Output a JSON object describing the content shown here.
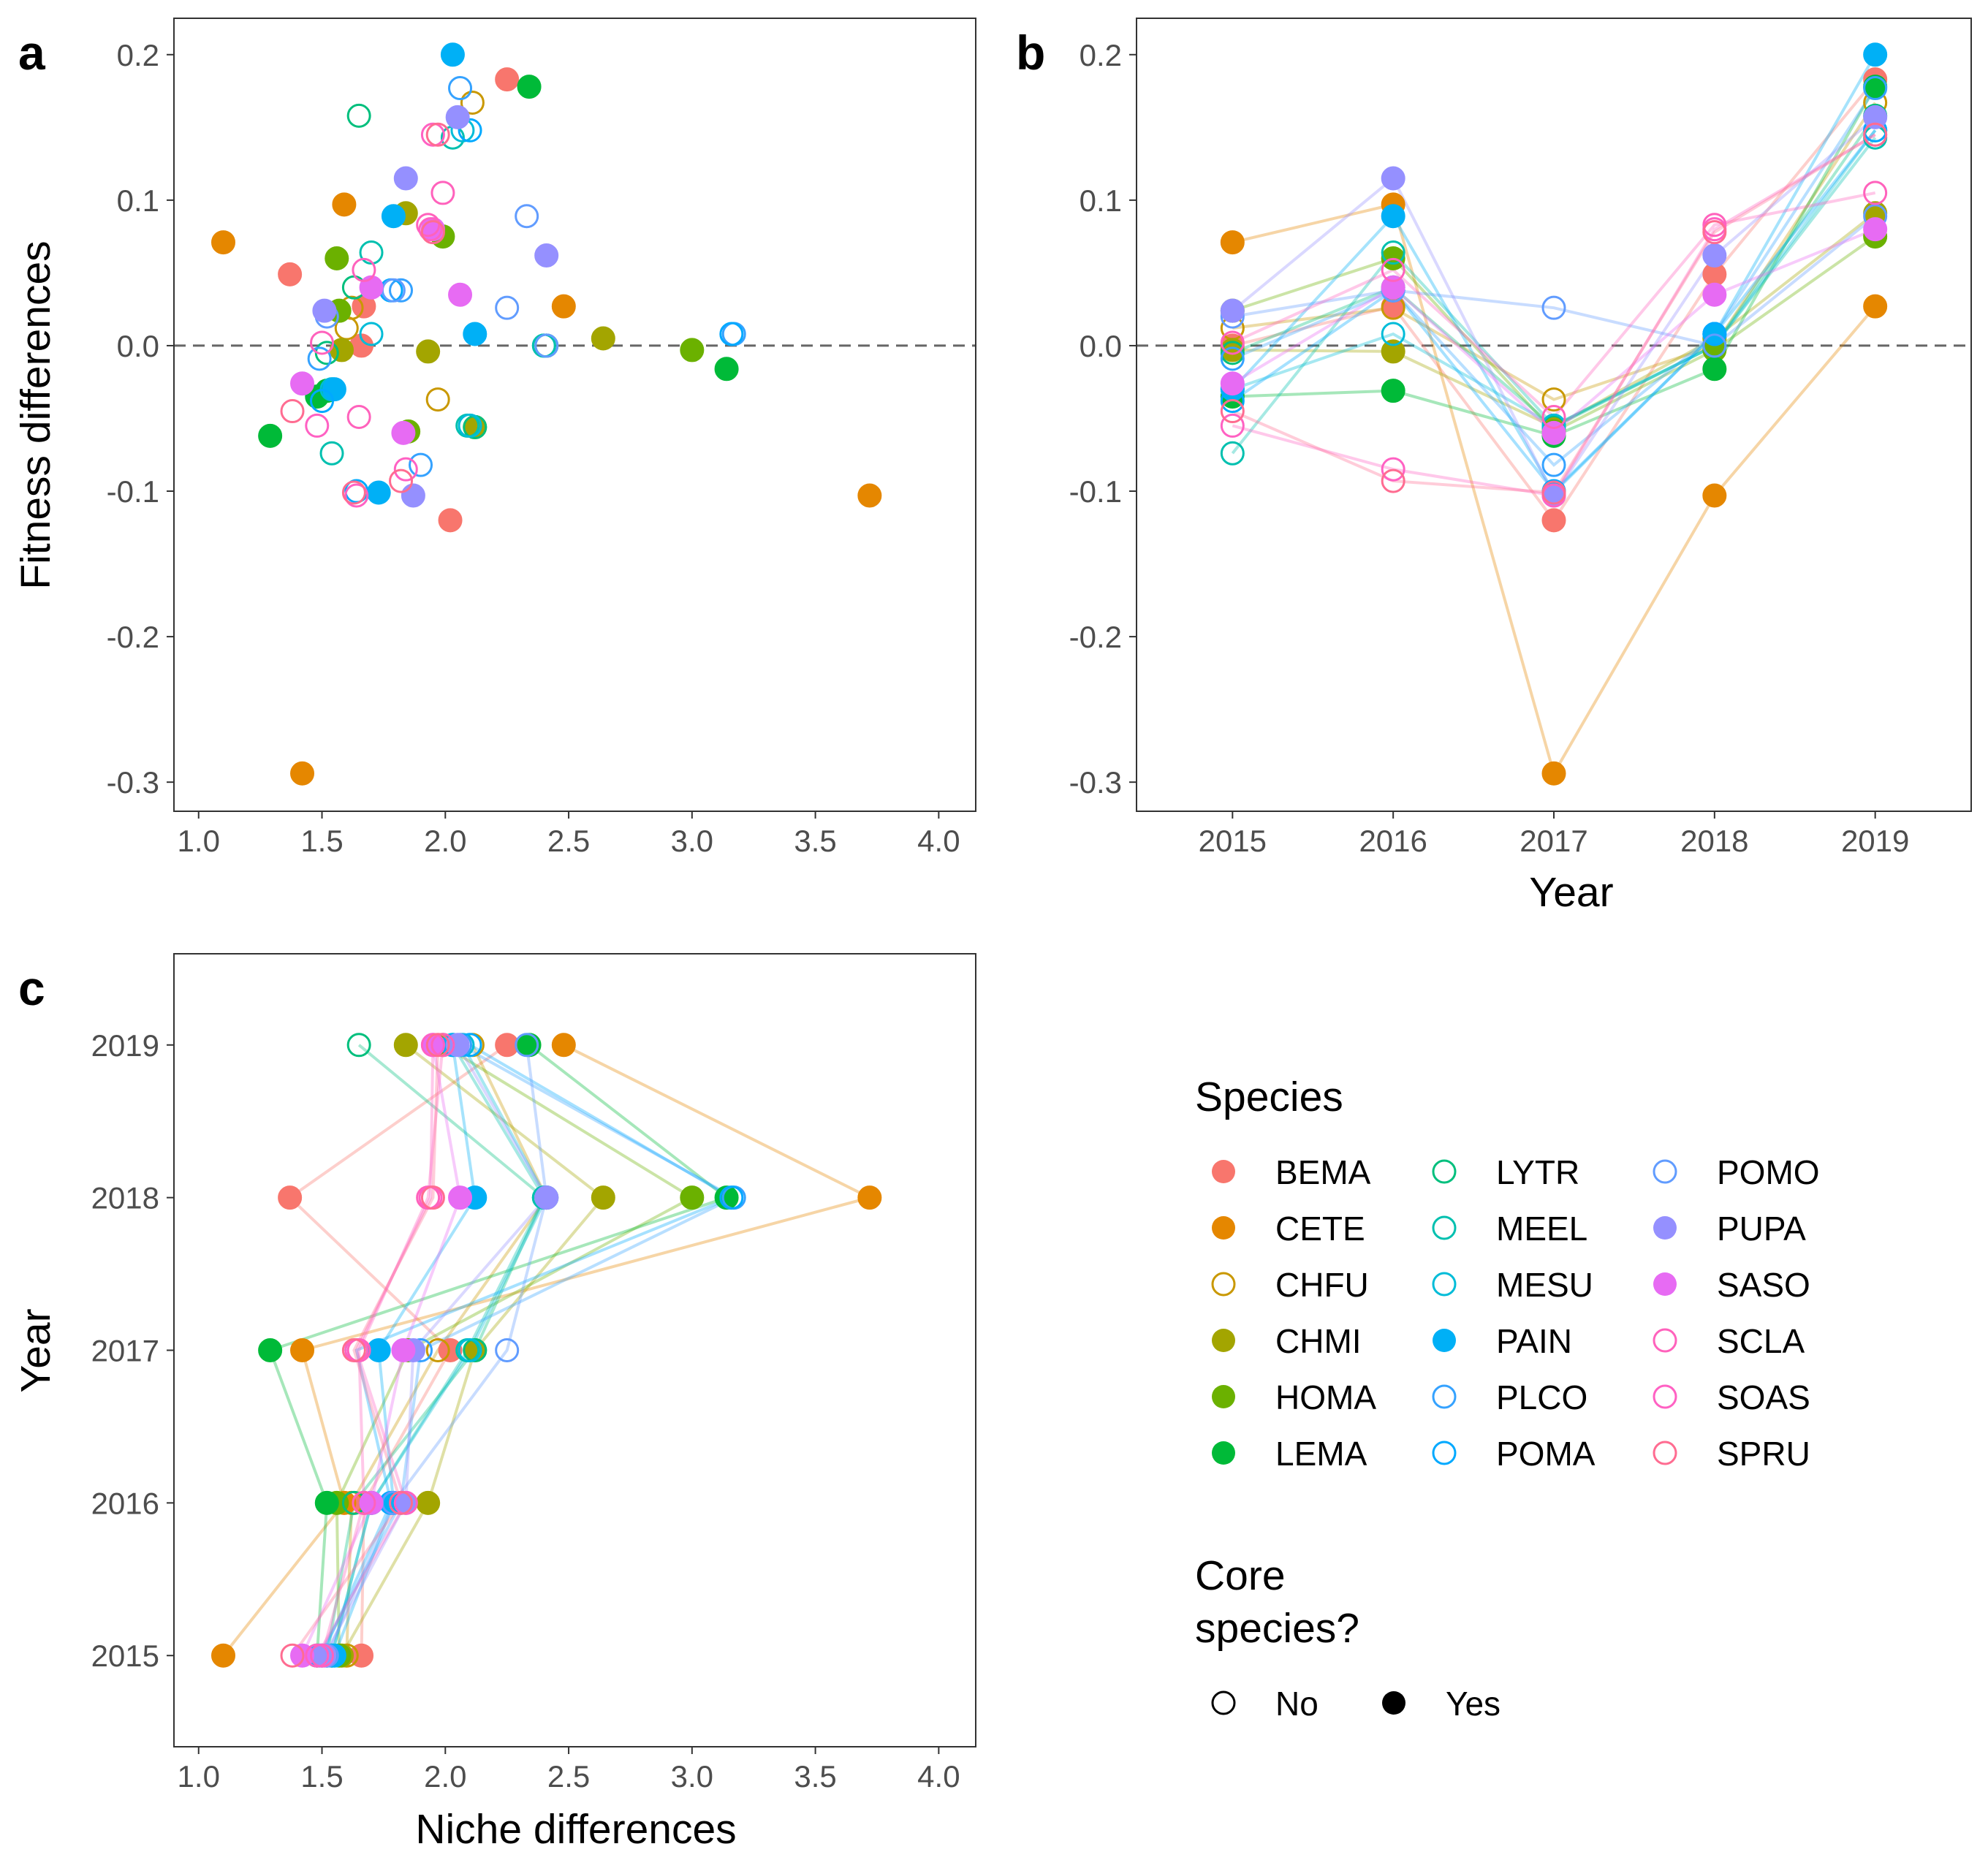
{
  "panels": {
    "a": {
      "letter": "a",
      "ylabel": "Fitness differences",
      "xlabel": "",
      "xlim": [
        0.9,
        4.15
      ],
      "ylim": [
        -0.32,
        0.225
      ],
      "xticks": [
        "1.0",
        "1.5",
        "2.0",
        "2.5",
        "3.0",
        "3.5",
        "4.0"
      ],
      "yticks": [
        "-0.3",
        "-0.2",
        "-0.1",
        "0.0",
        "0.1",
        "0.2"
      ],
      "reference_line_y": 0
    },
    "b": {
      "letter": "b",
      "xlabel": "Year",
      "ylabel": "",
      "years": [
        "2015",
        "2016",
        "2017",
        "2018",
        "2019"
      ],
      "ylim": [
        -0.32,
        0.225
      ],
      "yticks": [
        "-0.3",
        "-0.2",
        "-0.1",
        "0.0",
        "0.1",
        "0.2"
      ],
      "reference_line_y": 0
    },
    "c": {
      "letter": "c",
      "xlabel": "Niche differences",
      "ylabel": "Year",
      "xlim": [
        0.9,
        4.15
      ],
      "xticks": [
        "1.0",
        "1.5",
        "2.0",
        "2.5",
        "3.0",
        "3.5",
        "4.0"
      ],
      "years": [
        "2015",
        "2016",
        "2017",
        "2018",
        "2019"
      ]
    }
  },
  "legend": {
    "species_title": "Species",
    "core_title_line1": "Core",
    "core_title_line2": "species?",
    "core_no": "No",
    "core_yes": "Yes"
  },
  "chart_data": {
    "type": "scatter",
    "x_variable": "Niche differences",
    "y_variable": "Fitness differences",
    "years": [
      2015,
      2016,
      2017,
      2018,
      2019
    ],
    "species": [
      {
        "name": "BEMA",
        "color": "#F8766D",
        "core": true,
        "points": [
          [
            2015,
            1.66,
            0.0
          ],
          [
            2016,
            1.67,
            0.027
          ],
          [
            2017,
            2.02,
            -0.12
          ],
          [
            2018,
            1.37,
            0.049
          ],
          [
            2019,
            2.25,
            0.183
          ]
        ]
      },
      {
        "name": "CETE",
        "color": "#E58700",
        "core": true,
        "points": [
          [
            2015,
            1.1,
            0.071
          ],
          [
            2016,
            1.59,
            0.097
          ],
          [
            2017,
            1.42,
            -0.294
          ],
          [
            2018,
            3.72,
            -0.103
          ],
          [
            2019,
            2.48,
            0.027
          ]
        ]
      },
      {
        "name": "CHFU",
        "color": "#C99800",
        "core": false,
        "points": [
          [
            2015,
            1.6,
            0.012
          ],
          [
            2016,
            1.62,
            0.026
          ],
          [
            2017,
            1.97,
            -0.037
          ],
          [
            2018,
            2.41,
            0.0
          ],
          [
            2019,
            2.11,
            0.167
          ]
        ]
      },
      {
        "name": "CHMI",
        "color": "#A3A500",
        "core": true,
        "points": [
          [
            2015,
            1.58,
            -0.003
          ],
          [
            2016,
            1.93,
            -0.004
          ],
          [
            2017,
            2.12,
            -0.056
          ],
          [
            2018,
            2.64,
            0.005
          ],
          [
            2019,
            1.84,
            0.091
          ]
        ]
      },
      {
        "name": "HOMA",
        "color": "#6BB100",
        "core": true,
        "points": [
          [
            2015,
            1.57,
            0.024
          ],
          [
            2016,
            1.56,
            0.06
          ],
          [
            2017,
            1.85,
            -0.059
          ],
          [
            2018,
            3.0,
            -0.003
          ],
          [
            2019,
            1.99,
            0.075
          ]
        ]
      },
      {
        "name": "LEMA",
        "color": "#00BA38",
        "core": true,
        "points": [
          [
            2015,
            1.48,
            -0.035
          ],
          [
            2016,
            1.52,
            -0.031
          ],
          [
            2017,
            1.29,
            -0.062
          ],
          [
            2018,
            3.14,
            -0.016
          ],
          [
            2019,
            2.34,
            0.178
          ]
        ]
      },
      {
        "name": "LYTR",
        "color": "#00BF7D",
        "core": false,
        "points": [
          [
            2015,
            1.52,
            -0.005
          ],
          [
            2016,
            1.63,
            0.04
          ],
          [
            2017,
            2.12,
            -0.056
          ],
          [
            2018,
            2.4,
            0.0
          ],
          [
            2019,
            1.65,
            0.158
          ]
        ]
      },
      {
        "name": "MEEL",
        "color": "#00C0AF",
        "core": false,
        "points": [
          [
            2015,
            1.54,
            -0.074
          ],
          [
            2016,
            1.7,
            0.064
          ],
          [
            2017,
            2.09,
            -0.055
          ],
          [
            2018,
            2.4,
            0.0
          ],
          [
            2019,
            2.03,
            0.143
          ]
        ]
      },
      {
        "name": "MESU",
        "color": "#00BCD8",
        "core": false,
        "points": [
          [
            2015,
            1.54,
            -0.03
          ],
          [
            2016,
            1.7,
            0.008
          ],
          [
            2017,
            2.1,
            -0.055
          ],
          [
            2018,
            2.41,
            0.0
          ],
          [
            2019,
            2.07,
            0.148
          ]
        ]
      },
      {
        "name": "PAIN",
        "color": "#00B0F6",
        "core": true,
        "points": [
          [
            2015,
            1.55,
            -0.03
          ],
          [
            2016,
            1.79,
            0.089
          ],
          [
            2017,
            1.73,
            -0.101
          ],
          [
            2018,
            2.12,
            0.008
          ],
          [
            2019,
            2.03,
            0.2
          ]
        ]
      },
      {
        "name": "PLCO",
        "color": "#35A2FF",
        "core": false,
        "points": [
          [
            2015,
            1.49,
            -0.009
          ],
          [
            2016,
            1.82,
            0.038
          ],
          [
            2017,
            1.9,
            -0.082
          ],
          [
            2018,
            3.17,
            0.008
          ],
          [
            2019,
            2.06,
            0.177
          ]
        ]
      },
      {
        "name": "POMA",
        "color": "#00A9FF",
        "core": false,
        "points": [
          [
            2015,
            1.5,
            -0.038
          ],
          [
            2016,
            1.78,
            0.038
          ],
          [
            2017,
            1.64,
            -0.1
          ],
          [
            2018,
            3.16,
            0.008
          ],
          [
            2019,
            2.1,
            0.148
          ]
        ]
      },
      {
        "name": "POMO",
        "color": "#619CFF",
        "core": false,
        "points": [
          [
            2015,
            1.52,
            0.02
          ],
          [
            2016,
            1.79,
            0.038
          ],
          [
            2017,
            2.25,
            0.026
          ],
          [
            2018,
            2.41,
            0.0
          ],
          [
            2019,
            2.33,
            0.089
          ]
        ]
      },
      {
        "name": "PUPA",
        "color": "#9590FF",
        "core": true,
        "points": [
          [
            2015,
            1.51,
            0.024
          ],
          [
            2016,
            1.84,
            0.115
          ],
          [
            2017,
            1.87,
            -0.103
          ],
          [
            2018,
            2.41,
            0.062
          ],
          [
            2019,
            2.05,
            0.157
          ]
        ]
      },
      {
        "name": "SASO",
        "color": "#E76BF3",
        "core": true,
        "points": [
          [
            2015,
            1.42,
            -0.026
          ],
          [
            2016,
            1.7,
            0.04
          ],
          [
            2017,
            1.83,
            -0.06
          ],
          [
            2018,
            2.06,
            0.035
          ],
          [
            2019,
            1.95,
            0.08
          ]
        ]
      },
      {
        "name": "SCLA",
        "color": "#FF62BC",
        "core": false,
        "points": [
          [
            2015,
            1.5,
            0.002
          ],
          [
            2016,
            1.67,
            0.052
          ],
          [
            2017,
            1.65,
            -0.049
          ],
          [
            2018,
            1.93,
            0.083
          ],
          [
            2019,
            1.99,
            0.105
          ]
        ]
      },
      {
        "name": "SOAS",
        "color": "#FF61C3",
        "core": false,
        "points": [
          [
            2015,
            1.48,
            -0.055
          ],
          [
            2016,
            1.84,
            -0.085
          ],
          [
            2017,
            1.64,
            -0.103
          ],
          [
            2018,
            1.94,
            0.08
          ],
          [
            2019,
            1.95,
            0.145
          ]
        ]
      },
      {
        "name": "SPRU",
        "color": "#FF6C91",
        "core": false,
        "points": [
          [
            2015,
            1.38,
            -0.045
          ],
          [
            2016,
            1.82,
            -0.093
          ],
          [
            2017,
            1.63,
            -0.101
          ],
          [
            2018,
            1.95,
            0.078
          ],
          [
            2019,
            1.97,
            0.145
          ]
        ]
      }
    ]
  }
}
